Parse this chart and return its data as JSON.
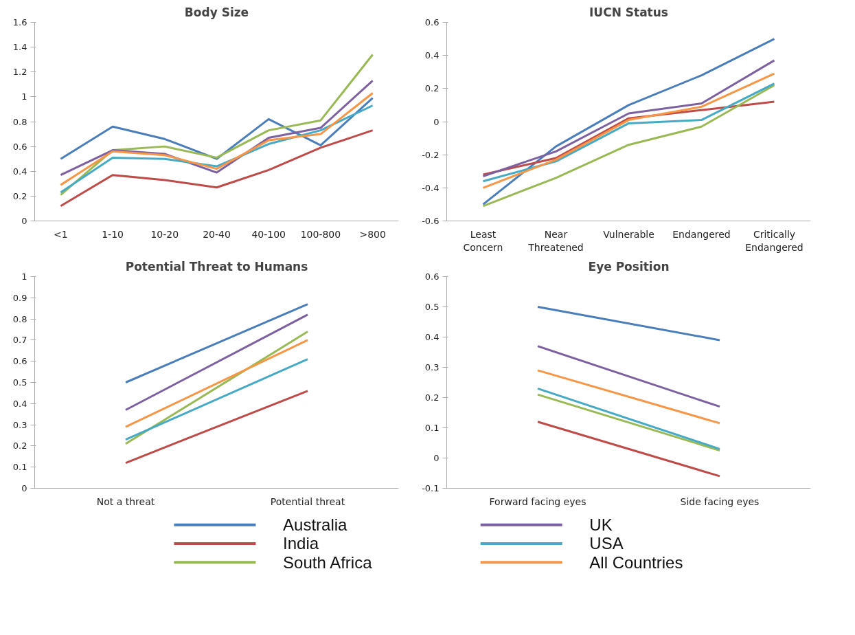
{
  "chart_data": [
    {
      "type": "line",
      "title": "Body Size",
      "categories": [
        "<1",
        "1-10",
        "10-20",
        "20-40",
        "40-100",
        "100-800",
        ">800"
      ],
      "ylim": [
        0,
        1.6
      ],
      "yticks": [
        0,
        0.2,
        0.4,
        0.6,
        0.8,
        1,
        1.2,
        1.4,
        1.6
      ],
      "grid": false,
      "legend": "bottom",
      "series": [
        {
          "name": "Australia",
          "color": "#4a7ebb",
          "values": [
            0.5,
            0.76,
            0.66,
            0.5,
            0.82,
            0.61,
            0.99
          ]
        },
        {
          "name": "India",
          "color": "#be4b48",
          "values": [
            0.12,
            0.37,
            0.33,
            0.27,
            0.41,
            0.59,
            0.73
          ]
        },
        {
          "name": "South Africa",
          "color": "#98b954",
          "values": [
            0.21,
            0.57,
            0.6,
            0.51,
            0.73,
            0.81,
            1.34
          ]
        },
        {
          "name": "UK",
          "color": "#7d60a0",
          "values": [
            0.37,
            0.57,
            0.54,
            0.39,
            0.67,
            0.75,
            1.13
          ]
        },
        {
          "name": "USA",
          "color": "#46aac5",
          "values": [
            0.23,
            0.51,
            0.5,
            0.44,
            0.62,
            0.73,
            0.93
          ]
        },
        {
          "name": "All Countries",
          "color": "#f79646",
          "values": [
            0.29,
            0.56,
            0.53,
            0.42,
            0.65,
            0.7,
            1.03
          ]
        }
      ]
    },
    {
      "type": "line",
      "title": "IUCN Status",
      "categories": [
        "Least Concern",
        "Near Threatened",
        "Vulnerable",
        "Endangered",
        "Critically Endangered"
      ],
      "ylim": [
        -0.6,
        0.6
      ],
      "yticks": [
        -0.6,
        -0.4,
        -0.2,
        0,
        0.2,
        0.4,
        0.6
      ],
      "grid": false,
      "series": [
        {
          "color": "#4a7ebb",
          "values": [
            -0.5,
            -0.15,
            0.1,
            0.28,
            0.5
          ]
        },
        {
          "color": "#be4b48",
          "values": [
            -0.32,
            -0.22,
            0.02,
            0.07,
            0.12
          ]
        },
        {
          "color": "#98b954",
          "values": [
            -0.51,
            -0.34,
            -0.14,
            -0.03,
            0.22
          ]
        },
        {
          "color": "#7d60a0",
          "values": [
            -0.33,
            -0.18,
            0.05,
            0.11,
            0.37
          ]
        },
        {
          "color": "#46aac5",
          "values": [
            -0.36,
            -0.24,
            -0.01,
            0.01,
            0.23
          ]
        },
        {
          "color": "#f79646",
          "values": [
            -0.4,
            -0.23,
            0.01,
            0.09,
            0.29
          ]
        }
      ]
    },
    {
      "type": "line",
      "title": "Potential Threat to Humans",
      "categories": [
        "Not a threat",
        "Potential threat"
      ],
      "ylim": [
        0,
        1
      ],
      "yticks": [
        0,
        0.1,
        0.2,
        0.3,
        0.4,
        0.5,
        0.6,
        0.7,
        0.8,
        0.9,
        1
      ],
      "grid": false,
      "series": [
        {
          "color": "#4a7ebb",
          "values": [
            0.5,
            0.87
          ]
        },
        {
          "color": "#be4b48",
          "values": [
            0.12,
            0.46
          ]
        },
        {
          "color": "#98b954",
          "values": [
            0.21,
            0.74
          ]
        },
        {
          "color": "#7d60a0",
          "values": [
            0.37,
            0.82
          ]
        },
        {
          "color": "#46aac5",
          "values": [
            0.23,
            0.61
          ]
        },
        {
          "color": "#f79646",
          "values": [
            0.29,
            0.7
          ]
        }
      ]
    },
    {
      "type": "line",
      "title": "Eye Position",
      "categories": [
        "Forward facing eyes",
        "Side facing eyes"
      ],
      "ylim": [
        -0.1,
        0.6
      ],
      "yticks": [
        -0.1,
        0,
        0.1,
        0.2,
        0.3,
        0.4,
        0.5,
        0.6
      ],
      "grid": false,
      "series": [
        {
          "color": "#4a7ebb",
          "values": [
            0.5,
            0.39
          ]
        },
        {
          "color": "#be4b48",
          "values": [
            0.12,
            -0.06
          ]
        },
        {
          "color": "#98b954",
          "values": [
            0.21,
            0.025
          ]
        },
        {
          "color": "#7d60a0",
          "values": [
            0.37,
            0.17
          ]
        },
        {
          "color": "#46aac5",
          "values": [
            0.23,
            0.03
          ]
        },
        {
          "color": "#f79646",
          "values": [
            0.29,
            0.115
          ]
        }
      ]
    }
  ]
}
